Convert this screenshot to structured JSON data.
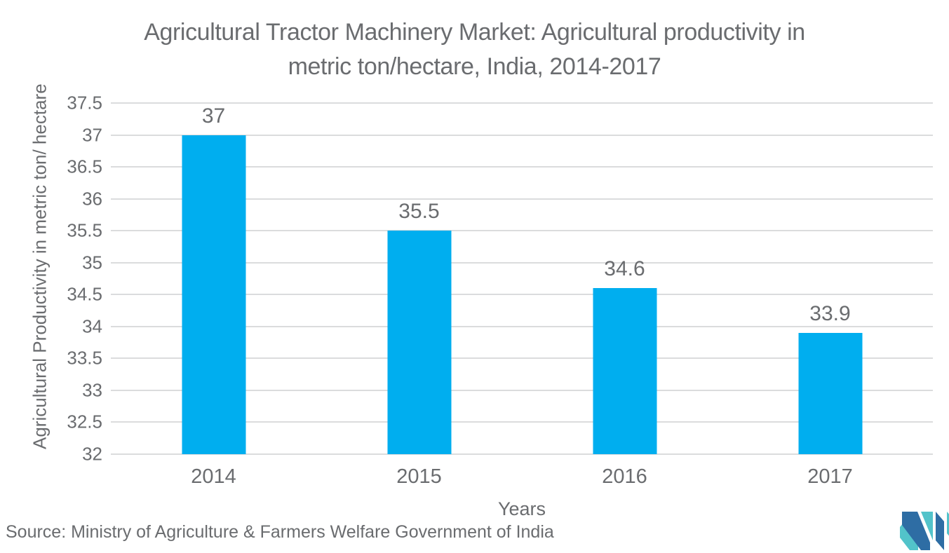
{
  "chart_data": {
    "type": "bar",
    "title": "Agricultural Tractor Machinery Market: Agricultural productivity in metric ton/hectare, India, 2014-2017",
    "categories": [
      "2014",
      "2015",
      "2016",
      "2017"
    ],
    "values": [
      37,
      35.5,
      34.6,
      33.9
    ],
    "value_labels": [
      "37",
      "35.5",
      "34.6",
      "33.9"
    ],
    "xlabel": "Years",
    "ylabel": "Agricultural Productivity in metric ton/ hectare",
    "ylim": [
      32,
      37.5
    ],
    "ytick_labels": [
      "37.5",
      "37",
      "36.5",
      "36",
      "35.5",
      "35",
      "34.5",
      "34",
      "33.5",
      "33",
      "32.5",
      "32"
    ],
    "grid": true,
    "legend": false,
    "bar_color": "#00AEEF"
  },
  "source": "Source: Ministry of Agriculture & Farmers Welfare Government of India",
  "logo": {
    "name": "mordor-intelligence-logo"
  },
  "colors": {
    "bar": "#00AEEF",
    "text": "#6A6C6F",
    "gridline": "#DBDCDD",
    "logo_teal": "#52C3CA",
    "logo_blue": "#2E6DA4"
  }
}
